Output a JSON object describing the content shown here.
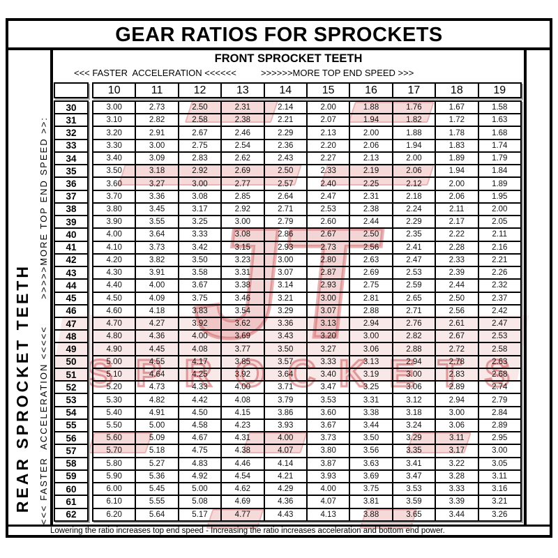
{
  "title": "GEAR RATIOS FOR SPROCKETS",
  "footer_note": "Lowering the ratio increases top end speed - Increasing the ratio increases acceleration and bottom end power.",
  "front_axis": {
    "header": "FRONT SPROCKET TEETH",
    "left_note": "<<< FASTER  ACCELERATION <<<<<<",
    "right_note": ">>>>>>MORE TOP END SPEED >>>"
  },
  "rear_axis": {
    "label": "REAR SPROCKET TEETH",
    "bottom_note": "<<< FASTER  ACCELERATION <<<<<",
    "top_note": ">>>>>MORE TOP END SPEED >>:"
  },
  "watermark": {
    "mark": "JT",
    "name": "SPROCKETS",
    "stroke_color": "#bc2a2e",
    "fill_color": "#eab2b2"
  },
  "chart_data": {
    "type": "table",
    "title": "GEAR RATIOS FOR SPROCKETS",
    "x_title": "FRONT SPROCKET TEETH",
    "y_title": "REAR SPROCKET TEETH",
    "col_headers": [
      "10",
      "11",
      "12",
      "13",
      "14",
      "15",
      "16",
      "17",
      "18",
      "19"
    ],
    "rows": [
      {
        "rear": "30",
        "values": [
          "3.00",
          "2.73",
          "2.50",
          "2.31",
          "2.14",
          "2.00",
          "1.88",
          "1.76",
          "1.67",
          "1.58"
        ]
      },
      {
        "rear": "31",
        "values": [
          "3.10",
          "2.82",
          "2.58",
          "2.38",
          "2.21",
          "2.07",
          "1.94",
          "1.82",
          "1.72",
          "1.63"
        ]
      },
      {
        "rear": "32",
        "values": [
          "3.20",
          "2.91",
          "2.67",
          "2.46",
          "2.29",
          "2.13",
          "2.00",
          "1.88",
          "1.78",
          "1.68"
        ]
      },
      {
        "rear": "33",
        "values": [
          "3.30",
          "3.00",
          "2.75",
          "2.54",
          "2.36",
          "2.20",
          "2.06",
          "1.94",
          "1.83",
          "1.74"
        ]
      },
      {
        "rear": "34",
        "values": [
          "3.40",
          "3.09",
          "2.83",
          "2.62",
          "2.43",
          "2.27",
          "2.13",
          "2.00",
          "1.89",
          "1.79"
        ]
      },
      {
        "rear": "35",
        "values": [
          "3.50",
          "3.18",
          "2.92",
          "2.69",
          "2.50",
          "2.33",
          "2.19",
          "2.06",
          "1.94",
          "1.84"
        ]
      },
      {
        "rear": "36",
        "values": [
          "3.60",
          "3.27",
          "3.00",
          "2.77",
          "2.57",
          "2.40",
          "2.25",
          "2.12",
          "2.00",
          "1.89"
        ]
      },
      {
        "rear": "37",
        "values": [
          "3.70",
          "3.36",
          "3.08",
          "2.85",
          "2.64",
          "2.47",
          "2.31",
          "2.18",
          "2.06",
          "1.95"
        ]
      },
      {
        "rear": "38",
        "values": [
          "3.80",
          "3.45",
          "3.17",
          "2.92",
          "2.71",
          "2.53",
          "2.38",
          "2.24",
          "2.11",
          "2.00"
        ]
      },
      {
        "rear": "39",
        "values": [
          "3.90",
          "3.55",
          "3.25",
          "3.00",
          "2.79",
          "2.60",
          "2.44",
          "2.29",
          "2.17",
          "2.05"
        ]
      },
      {
        "rear": "40",
        "values": [
          "4.00",
          "3.64",
          "3.33",
          "3.08",
          "2.86",
          "2.67",
          "2.50",
          "2.35",
          "2.22",
          "2.11"
        ]
      },
      {
        "rear": "41",
        "values": [
          "4.10",
          "3.73",
          "3.42",
          "3.15",
          "2.93",
          "2.73",
          "2.56",
          "2.41",
          "2.28",
          "2.16"
        ]
      },
      {
        "rear": "42",
        "values": [
          "4.20",
          "3.82",
          "3.50",
          "3.23",
          "3.00",
          "2.80",
          "2.63",
          "2.47",
          "2.33",
          "2.21"
        ]
      },
      {
        "rear": "43",
        "values": [
          "4.30",
          "3.91",
          "3.58",
          "3.31",
          "3.07",
          "2.87",
          "2.69",
          "2.53",
          "2.39",
          "2.26"
        ]
      },
      {
        "rear": "44",
        "values": [
          "4.40",
          "4.00",
          "3.67",
          "3.38",
          "3.14",
          "2.93",
          "2.75",
          "2.59",
          "2.44",
          "2.32"
        ]
      },
      {
        "rear": "45",
        "values": [
          "4.50",
          "4.09",
          "3.75",
          "3.46",
          "3.21",
          "3.00",
          "2.81",
          "2.65",
          "2.50",
          "2.37"
        ]
      },
      {
        "rear": "46",
        "values": [
          "4.60",
          "4.18",
          "3.83",
          "3.54",
          "3.29",
          "3.07",
          "2.88",
          "2.71",
          "2.56",
          "2.42"
        ]
      },
      {
        "rear": "47",
        "values": [
          "4.70",
          "4.27",
          "3.92",
          "3.62",
          "3.36",
          "3.13",
          "2.94",
          "2.76",
          "2.61",
          "2.47"
        ]
      },
      {
        "rear": "48",
        "values": [
          "4.80",
          "4.36",
          "4.00",
          "3.69",
          "3.43",
          "3.20",
          "3.00",
          "2.82",
          "2.67",
          "2.53"
        ]
      },
      {
        "rear": "49",
        "values": [
          "4.90",
          "4.45",
          "4.08",
          "3.77",
          "3.50",
          "3.27",
          "3.06",
          "2.88",
          "2.72",
          "2.58"
        ]
      },
      {
        "rear": "50",
        "values": [
          "5.00",
          "4.55",
          "4.17",
          "3.85",
          "3.57",
          "3.33",
          "3.13",
          "2.94",
          "2.78",
          "2.63"
        ]
      },
      {
        "rear": "51",
        "values": [
          "5.10",
          "4.64",
          "4.25",
          "3.92",
          "3.64",
          "3.40",
          "3.19",
          "3.00",
          "2.83",
          "2.68"
        ]
      },
      {
        "rear": "52",
        "values": [
          "5.20",
          "4.73",
          "4.33",
          "4.00",
          "3.71",
          "3.47",
          "3.25",
          "3.06",
          "2.89",
          "2.74"
        ]
      },
      {
        "rear": "53",
        "values": [
          "5.30",
          "4.82",
          "4.42",
          "4.08",
          "3.79",
          "3.53",
          "3.31",
          "3.12",
          "2.94",
          "2.79"
        ]
      },
      {
        "rear": "54",
        "values": [
          "5.40",
          "4.91",
          "4.50",
          "4.15",
          "3.86",
          "3.60",
          "3.38",
          "3.18",
          "3.00",
          "2.84"
        ]
      },
      {
        "rear": "55",
        "values": [
          "5.50",
          "5.00",
          "4.58",
          "4.23",
          "3.93",
          "3.67",
          "3.44",
          "3.24",
          "3.06",
          "2.89"
        ]
      },
      {
        "rear": "56",
        "values": [
          "5.60",
          "5.09",
          "4.67",
          "4.31",
          "4.00",
          "3.73",
          "3.50",
          "3.29",
          "3.11",
          "2.95"
        ]
      },
      {
        "rear": "57",
        "values": [
          "5.70",
          "5.18",
          "4.75",
          "4.38",
          "4.07",
          "3.80",
          "3.56",
          "3.35",
          "3.17",
          "3.00"
        ]
      },
      {
        "rear": "58",
        "values": [
          "5.80",
          "5.27",
          "4.83",
          "4.46",
          "4.14",
          "3.87",
          "3.63",
          "3.41",
          "3.22",
          "3.05"
        ]
      },
      {
        "rear": "59",
        "values": [
          "5.90",
          "5.36",
          "4.92",
          "4.54",
          "4.21",
          "3.93",
          "3.69",
          "3.47",
          "3.28",
          "3.11"
        ]
      },
      {
        "rear": "60",
        "values": [
          "6.00",
          "5.45",
          "5.00",
          "4.62",
          "4.29",
          "4.00",
          "3.75",
          "3.53",
          "3.33",
          "3.16"
        ]
      },
      {
        "rear": "61",
        "values": [
          "6.10",
          "5.55",
          "5.08",
          "4.69",
          "4.36",
          "4.07",
          "3.81",
          "3.59",
          "3.39",
          "3.21"
        ]
      },
      {
        "rear": "62",
        "values": [
          "6.20",
          "5.64",
          "5.17",
          "4.77",
          "4.43",
          "4.13",
          "3.88",
          "3.65",
          "3.44",
          "3.26"
        ]
      }
    ]
  }
}
